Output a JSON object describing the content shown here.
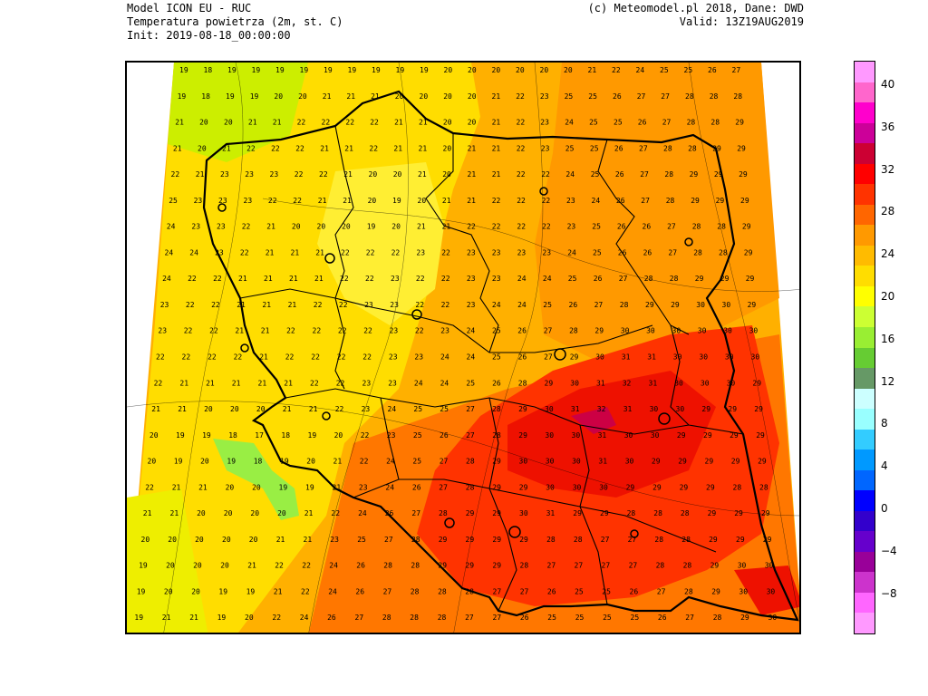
{
  "header": {
    "model": "Model ICON EU - RUC",
    "variable": "Temperatura powietrza (2m, st. C)",
    "init": "Init: 2019-08-18_00:00:00",
    "copyright": "(c) Meteomodel.pl 2018, Dane: DWD",
    "valid": "Valid: 13Z19AUG2019"
  },
  "colorbar": {
    "labels": [
      "40",
      "36",
      "32",
      "28",
      "24",
      "20",
      "16",
      "12",
      "8",
      "4",
      "0",
      "−4",
      "−8"
    ],
    "segments": [
      "#ff99ff",
      "#ff66cc",
      "#ff00cc",
      "#cc0099",
      "#cc0033",
      "#ff0000",
      "#ff3300",
      "#ff6600",
      "#ff9900",
      "#ffbb00",
      "#ffdd00",
      "#ffff00",
      "#ccff33",
      "#99ee33",
      "#66cc33",
      "#669966",
      "#ccffff",
      "#99ffff",
      "#33ccff",
      "#0099ff",
      "#0066ff",
      "#0000ff",
      "#3300cc",
      "#6600cc",
      "#990099",
      "#cc33cc",
      "#ff66ff",
      "#ff99ff"
    ]
  },
  "map": {
    "title": "",
    "regions": [
      {
        "name": "north-west",
        "color": "#ffdd00"
      },
      {
        "name": "central",
        "color": "#ffee22"
      },
      {
        "name": "south-east",
        "color": "#ff3300"
      },
      {
        "name": "hot-core",
        "color": "#dd0033"
      },
      {
        "name": "cool-spot",
        "color": "#99ee33"
      }
    ],
    "rows": [
      "19 18 19 19 19 19 19 19 19 19 19 20 20 20 20 20 20 21 22 24 25 25 26 27",
      "19 18 19 19 20 20 21 21 21 20 20 20 20 21 22 23 25 25 26 27 27 28 28 28",
      "21 20 20 21 21 22 22 22 22 21 21 20 20 21 22 23 24 25 25 26 27 28 28 29",
      "21 20 21 22 22 22 21 21 22 21 21 20 21 21 22 23 25 25 26 27 28 28 29 29",
      "22 21 23 23 23 22 22 21 20 20 21 20 21 21 22 22 24 25 26 27 28 29 29 29",
      "25 23 23 23 22 22 21 21 20 19 20 21 21 22 22 22 23 24 26 27 28 29 29 29",
      "24 23 23 22 21 20 20 20 19 20 21 21 22 22 22 22 23 25 26 26 27 28 28 29",
      "24 24 23 22 21 21 21 22 22 22 23 22 23 23 23 23 24 25 26 26 27 28 28 29",
      "24 22 22 21 21 21 21 22 22 23 22 22 23 23 24 24 25 26 27 28 28 29 29 29",
      "23 22 22 21 21 21 22 22 23 23 22 22 23 24 24 25 26 27 28 29 29 30 30 29",
      "23 22 22 21 21 22 22 22 22 23 22 23 24 25 26 27 28 29 30 30 30 30 30 30",
      "22 22 22 22 21 22 22 22 22 23 23 24 24 25 26 27 29 30 31 31 30 30 30 30",
      "22 21 21 21 21 21 22 22 23 23 24 24 25 26 28 29 30 31 32 31 30 30 30 29",
      "21 21 20 20 20 21 21 22 23 24 25 25 27 28 29 30 31 32 31 30 30 29 29 29",
      "20 19 19 18 17 18 19 20 22 23 25 26 27 28 29 30 30 31 30 30 29 29 29 29",
      "20 19 20 19 18 19 20 21 22 24 25 27 28 29 30 30 30 31 30 29 29 29 29 29",
      "22 21 21 20 20 19 19 21 23 24 26 27 28 29 29 30 30 30 29 29 29 29 28 28",
      "21 21 20 20 20 20 21 22 24 26 27 28 29 29 30 31 29 29 28 28 28 29 29 29",
      "20 20 20 20 20 21 21 23 25 27 28 29 29 29 29 28 28 27 27 28 28 29 29 29",
      "19 20 20 20 21 22 22 24 26 28 28 29 29 29 28 27 27 27 27 28 28 29 30 30",
      "19 20 20 19 19 21 22 24 26 27 28 28 28 27 27 26 25 25 26 27 28 29 30 30",
      "19 21 21 19 20 22 24 26 27 28 28 28 27 27 26 25 25 25 25 26 27 28 29 30"
    ]
  }
}
